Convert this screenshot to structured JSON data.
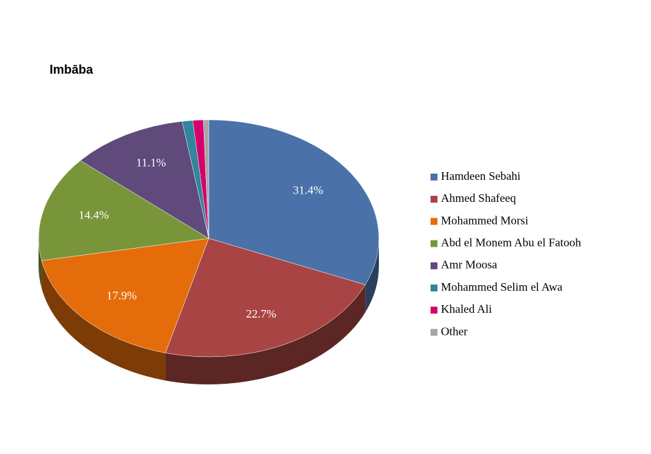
{
  "chart_data": {
    "type": "pie3d",
    "title": "Imbāba",
    "categories": [
      "Hamdeen Sebahi",
      "Ahmed Shafeeq",
      "Mohammed Morsi",
      "Abd el Monem Abu el Fatooh",
      "Amr Moosa",
      "Mohammed Selim el Awa",
      "Khaled Ali",
      "Other"
    ],
    "values": [
      31.4,
      22.7,
      17.9,
      14.4,
      11.1,
      1.0,
      1.0,
      0.5
    ],
    "value_labels": [
      "31.4%",
      "22.7%",
      "17.9%",
      "14.4%",
      "11.1%",
      null,
      null,
      null
    ],
    "colors": [
      "#4a72a8",
      "#a84544",
      "#e46c0a",
      "#789639",
      "#5f4a7b",
      "#31859c",
      "#d6006b",
      "#a6a6a6"
    ],
    "legend": "right"
  }
}
